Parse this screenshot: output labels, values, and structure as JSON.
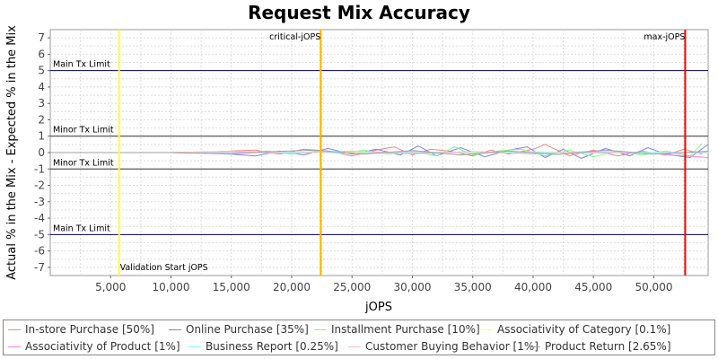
{
  "chart_data": {
    "type": "line",
    "title": "Request Mix Accuracy",
    "xlabel": "jOPS",
    "ylabel": "Actual % in the Mix - Expected % in the Mix",
    "xlim": [
      0,
      54500
    ],
    "ylim": [
      -7.5,
      7.5
    ],
    "x_ticks": [
      5000,
      10000,
      15000,
      20000,
      25000,
      30000,
      35000,
      40000,
      45000,
      50000
    ],
    "x_tick_labels": [
      "5,000",
      "10,000",
      "15,000",
      "20,000",
      "25,000",
      "30,000",
      "35,000",
      "40,000",
      "45,000",
      "50,000"
    ],
    "y_ticks": [
      7,
      6,
      5,
      4,
      3,
      2,
      1,
      0,
      -1,
      -2,
      -3,
      -4,
      -5,
      -6,
      -7
    ],
    "y_tick_labels": [
      "7",
      "6",
      "5",
      "4",
      "3",
      "2",
      "1",
      "0",
      "-1",
      "-2",
      "-3",
      "-4",
      "-5",
      "-6",
      "-7"
    ],
    "grid": true,
    "legend_position": "bottom",
    "horizontal_lines": [
      {
        "y": 5,
        "label": "Main Tx Limit",
        "color": "#000066"
      },
      {
        "y": 1,
        "label": "Minor Tx Limit",
        "color": "#333333"
      },
      {
        "y": -1,
        "label": "Minor Tx Limit",
        "color": "#333333"
      },
      {
        "y": -5,
        "label": "Main Tx Limit",
        "color": "#000066"
      }
    ],
    "vertical_lines": [
      {
        "x": 5700,
        "label": "Validation Start jOPS",
        "color": "#ffff33"
      },
      {
        "x": 22400,
        "label": "critical-jOPS",
        "color": "#ffb300"
      },
      {
        "x": 52600,
        "label": "max-jOPS",
        "color": "#ff0000"
      }
    ],
    "series": [
      {
        "name": "In-store Purchase [50%]",
        "color": "#ff7f7f",
        "x": [
          0,
          5000,
          10000,
          13500,
          15000,
          17000,
          19000,
          21000,
          23000,
          25000,
          27000,
          28500,
          30000,
          31500,
          33000,
          35000,
          36500,
          38000,
          40000,
          41000,
          43000,
          45000,
          47000,
          49000,
          51000,
          52500,
          54000
        ],
        "y": [
          0,
          0,
          0,
          0.05,
          0.1,
          0.15,
          -0.1,
          0.2,
          0.1,
          -0.2,
          0.15,
          0.35,
          -0.15,
          0.2,
          0.1,
          -0.2,
          0.15,
          -0.1,
          0.2,
          0.5,
          -0.2,
          0.15,
          -0.2,
          0.1,
          -0.15,
          0.2,
          -0.1
        ]
      },
      {
        "name": "Online Purchase [35%]",
        "color": "#7f7fff",
        "x": [
          0,
          5000,
          10000,
          13500,
          15000,
          17000,
          19000,
          21000,
          23000,
          25000,
          27000,
          29000,
          30500,
          32000,
          34000,
          36000,
          38000,
          39500,
          41000,
          42500,
          44000,
          46000,
          48000,
          49500,
          51000,
          53000,
          54500
        ],
        "y": [
          0,
          0,
          0,
          -0.05,
          -0.1,
          -0.2,
          0.1,
          -0.15,
          0.25,
          -0.1,
          0.2,
          -0.15,
          0.4,
          -0.2,
          0.3,
          -0.25,
          0.15,
          0.35,
          -0.3,
          0.2,
          -0.35,
          0.25,
          -0.2,
          0.3,
          -0.1,
          -0.3,
          0.5
        ]
      },
      {
        "name": "Installment Purchase [10%]",
        "color": "#7fff7f",
        "x": [
          0,
          5000,
          10000,
          14000,
          16000,
          18000,
          20000,
          22000,
          24000,
          26000,
          28000,
          30000,
          32000,
          33500,
          35000,
          37000,
          39000,
          41000,
          43000,
          45000,
          47000,
          49000,
          51000,
          53000,
          54000
        ],
        "y": [
          0,
          0,
          0,
          0.05,
          0,
          0.1,
          -0.1,
          0.1,
          -0.05,
          0.15,
          -0.1,
          0.1,
          -0.2,
          0.35,
          -0.15,
          0.1,
          0.2,
          -0.2,
          0.15,
          -0.25,
          0.1,
          -0.15,
          0.1,
          -0.2,
          0.55
        ]
      },
      {
        "name": "Associativity of Category [0.1%]",
        "color": "#ffff7f",
        "x": [
          0,
          10000,
          20000,
          30000,
          40000,
          50000,
          54500
        ],
        "y": [
          0,
          0,
          0.02,
          -0.02,
          0.03,
          -0.02,
          0.02
        ]
      },
      {
        "name": "Associativity of Product [1%]",
        "color": "#ff7fff",
        "x": [
          0,
          10000,
          15000,
          20000,
          25000,
          30000,
          35000,
          40000,
          45000,
          50000,
          54500
        ],
        "y": [
          0,
          0,
          0.05,
          -0.05,
          0.08,
          -0.05,
          0.06,
          -0.08,
          0.05,
          -0.06,
          -0.3
        ]
      },
      {
        "name": "Business Report [0.25%]",
        "color": "#7fffff",
        "x": [
          0,
          10000,
          15000,
          20000,
          25000,
          30000,
          35000,
          40000,
          45000,
          50000,
          54500
        ],
        "y": [
          0,
          0,
          -0.03,
          0.03,
          -0.04,
          0.04,
          -0.03,
          0.05,
          -0.04,
          0.03,
          -0.02
        ]
      },
      {
        "name": "Customer Buying Behavior [1%]",
        "color": "#ffbfbf",
        "x": [
          0,
          10000,
          15000,
          20000,
          25000,
          30000,
          35000,
          40000,
          45000,
          50000,
          54500
        ],
        "y": [
          0,
          0,
          0.08,
          -0.05,
          0.1,
          -0.08,
          0.06,
          -0.1,
          0.08,
          -0.06,
          0.05
        ]
      },
      {
        "name": "Product Return [2.65%]",
        "color": "#a0a0a0",
        "x": [
          0,
          10000,
          15000,
          18000,
          22000,
          26000,
          30000,
          34000,
          38000,
          42000,
          46000,
          50000,
          54500
        ],
        "y": [
          0,
          0,
          -0.08,
          0.05,
          0.15,
          -0.1,
          0.12,
          -0.15,
          0.1,
          -0.12,
          0.15,
          -0.1,
          0.08
        ]
      }
    ]
  }
}
